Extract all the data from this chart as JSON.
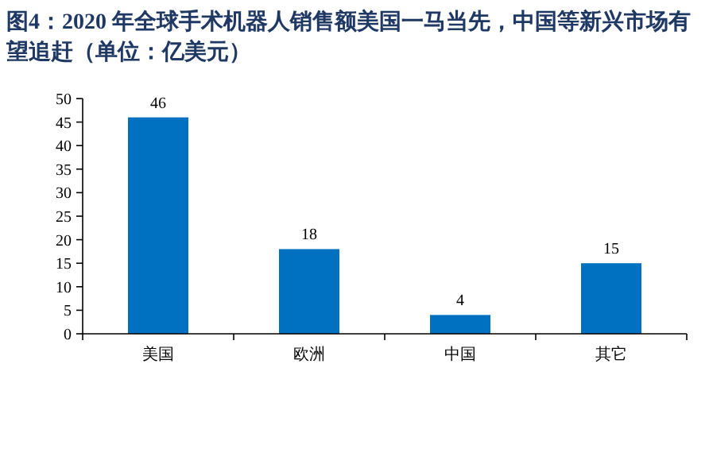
{
  "chart_data": {
    "type": "bar",
    "title": "图4：2020 年全球手术机器人销售额美国一马当先，中国等新兴市场有望追赶（单位：亿美元）",
    "categories": [
      "美国",
      "欧洲",
      "中国",
      "其它"
    ],
    "values": [
      46,
      18,
      4,
      15
    ],
    "color": "#0070c0",
    "ylim": [
      0,
      50
    ],
    "yticks": [
      0,
      5,
      10,
      15,
      20,
      25,
      30,
      35,
      40,
      45,
      50
    ],
    "data_labels": true
  }
}
